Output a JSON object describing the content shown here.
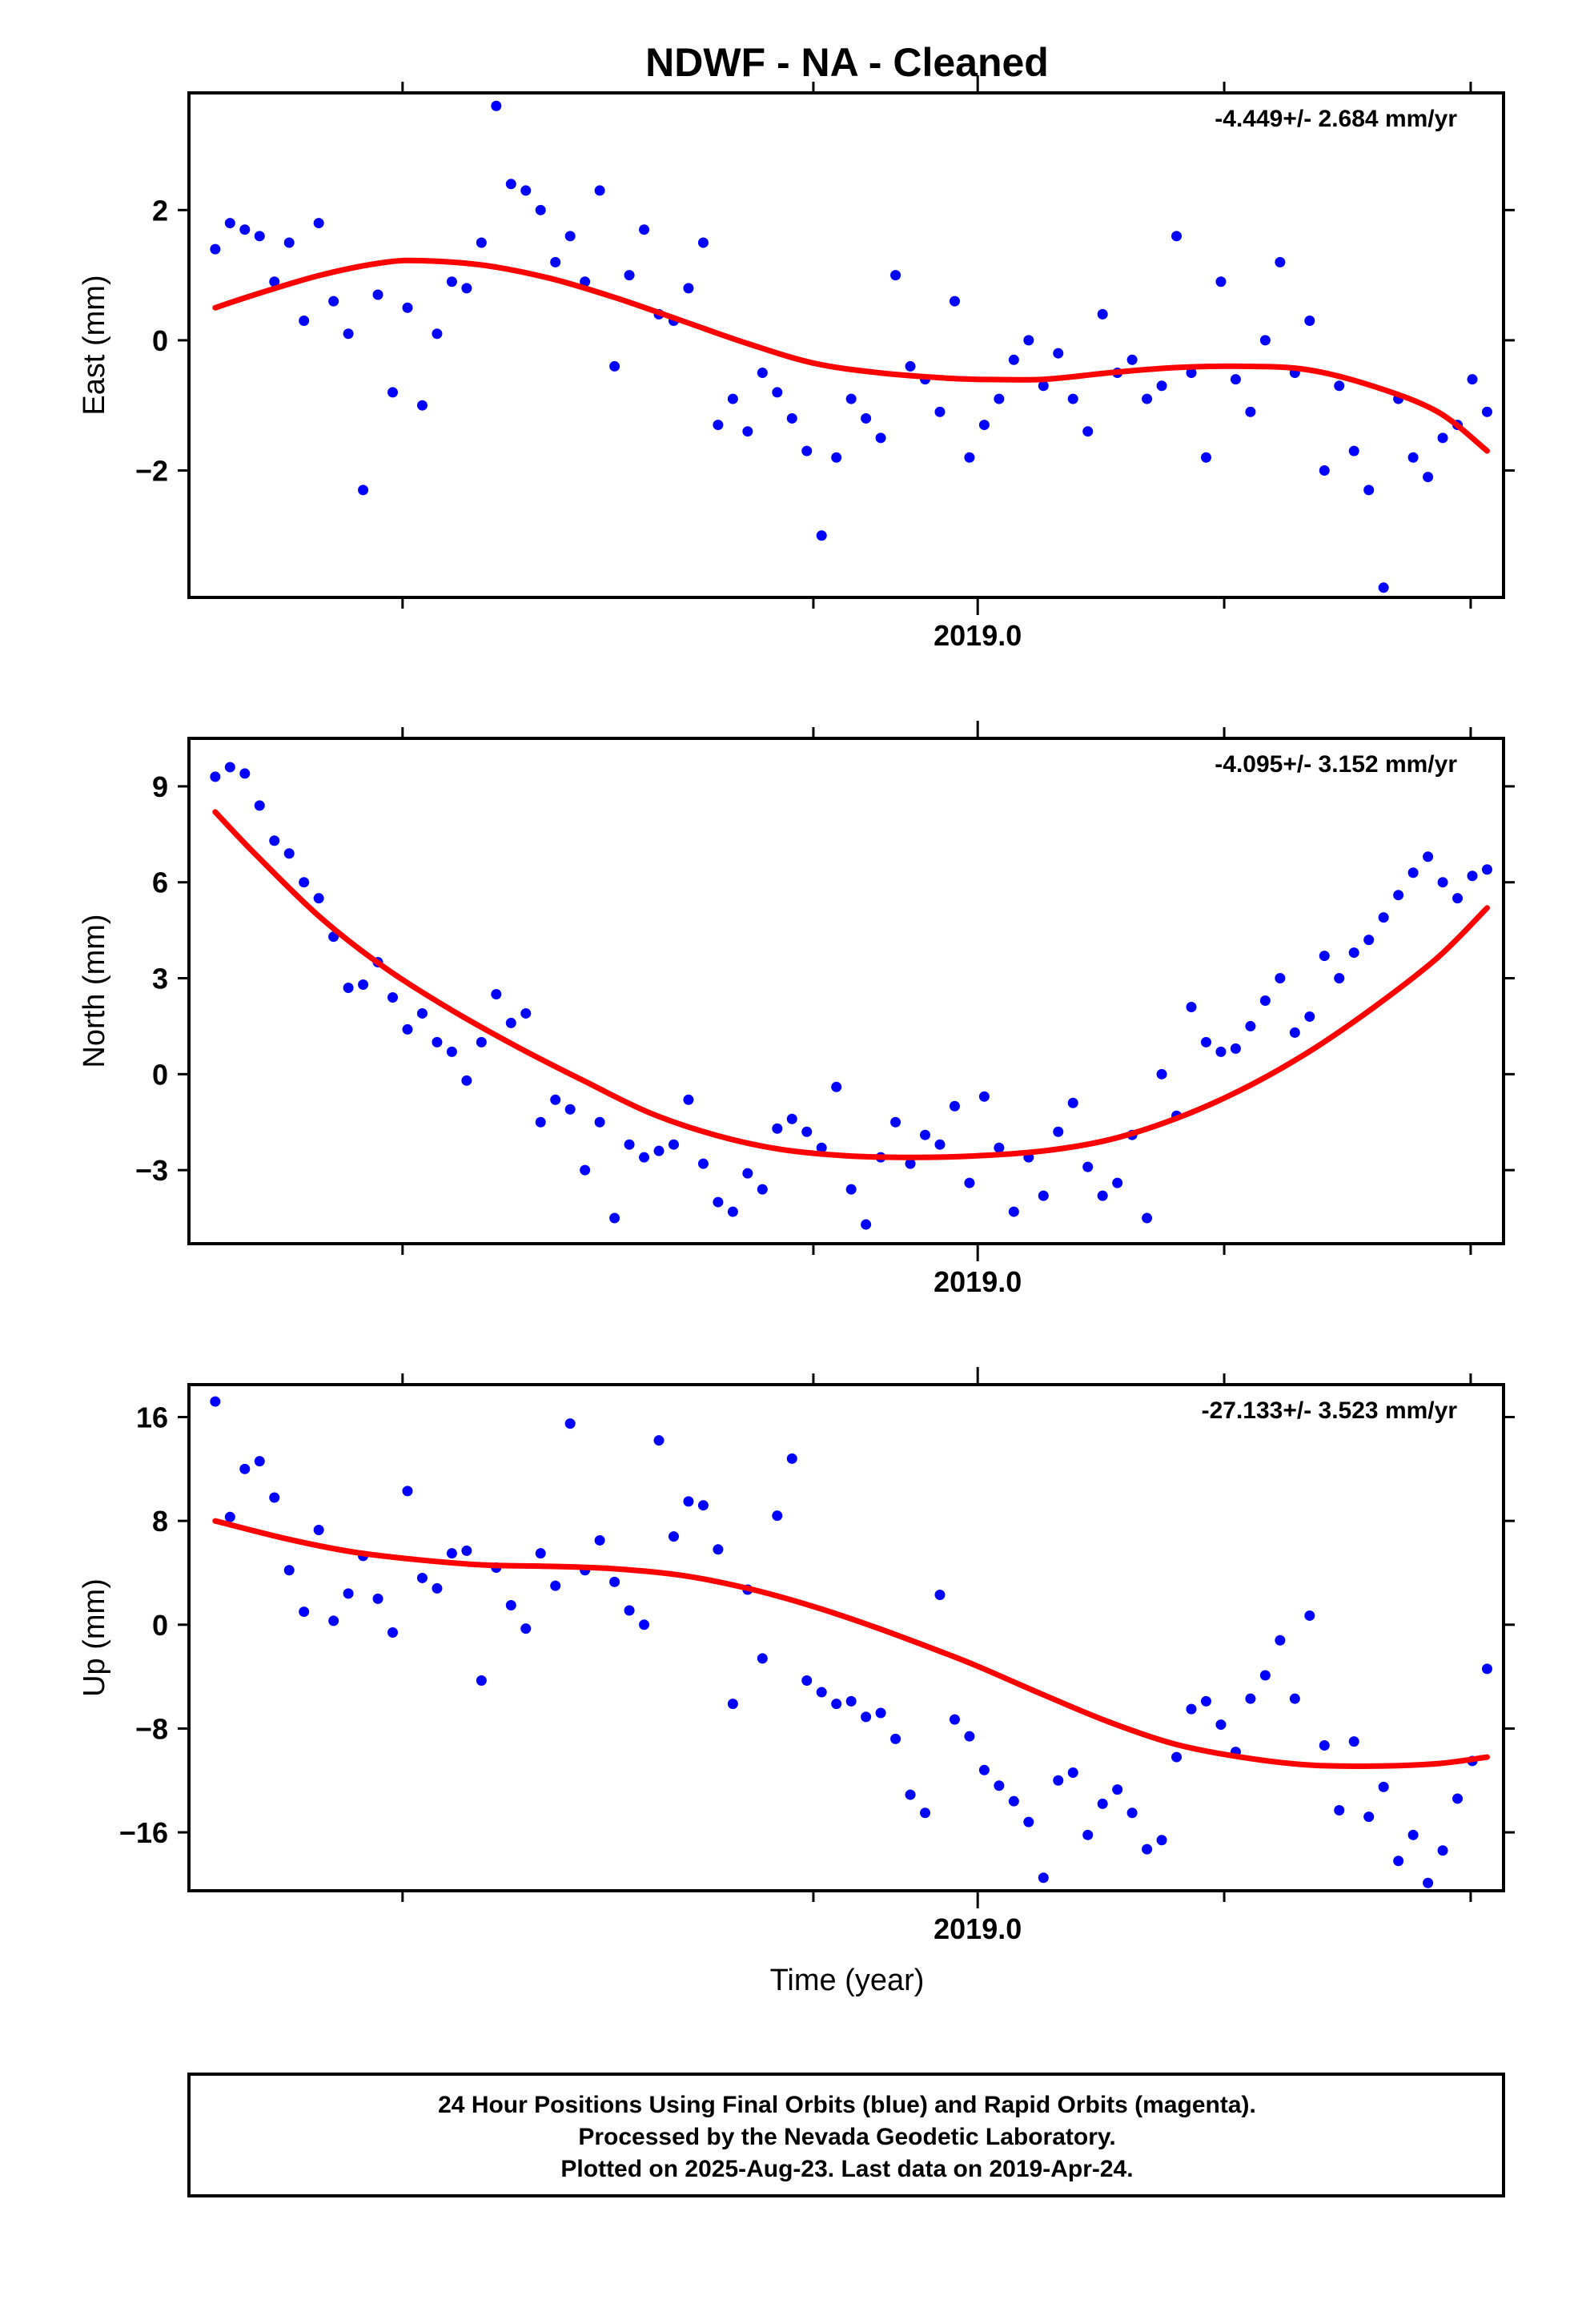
{
  "title": "NDWF  - NA - Cleaned",
  "xlabel": "Time (year)",
  "footer": {
    "line1": "24 Hour Positions Using Final Orbits (blue) and Rapid Orbits (magenta).",
    "line2": "Processed by the Nevada Geodetic Laboratory.",
    "line3": "Plotted on 2025-Aug-23. Last data on 2019-Apr-24."
  },
  "colors": {
    "points": "#0000ff",
    "fit": "#ff0000",
    "axis": "#000000"
  },
  "chart_data": [
    {
      "type": "scatter",
      "ylabel": "East (mm)",
      "rate": "-4.449+/- 2.684 mm/yr",
      "xlim": [
        2018.52,
        2019.32
      ],
      "ylim": [
        -3.95,
        3.8
      ],
      "x_tick_label": {
        "value": 2019.0,
        "label": "2019.0"
      },
      "y_ticks": [
        {
          "value": 2,
          "label": "2"
        },
        {
          "value": 0,
          "label": "0"
        },
        {
          "value": -2,
          "label": "−2"
        }
      ],
      "series": [
        {
          "x": [
            2018.536,
            2018.545,
            2018.554,
            2018.563,
            2018.572,
            2018.581,
            2018.59,
            2018.599,
            2018.608,
            2018.617,
            2018.626,
            2018.635,
            2018.644,
            2018.653,
            2018.662,
            2018.671,
            2018.68,
            2018.689,
            2018.698,
            2018.707,
            2018.716,
            2018.725,
            2018.734,
            2018.743,
            2018.752,
            2018.761,
            2018.77,
            2018.779,
            2018.788,
            2018.797,
            2018.806,
            2018.815,
            2018.824,
            2018.833,
            2018.842,
            2018.851,
            2018.86,
            2018.869,
            2018.878,
            2018.887,
            2018.896,
            2018.905,
            2018.914,
            2018.923,
            2018.932,
            2018.941,
            2018.95,
            2018.959,
            2018.968,
            2018.977,
            2018.986,
            2018.995,
            2019.004,
            2019.013,
            2019.022,
            2019.031,
            2019.04,
            2019.049,
            2019.058,
            2019.067,
            2019.076,
            2019.085,
            2019.094,
            2019.103,
            2019.112,
            2019.121,
            2019.13,
            2019.139,
            2019.148,
            2019.157,
            2019.166,
            2019.175,
            2019.184,
            2019.193,
            2019.202,
            2019.211,
            2019.22,
            2019.229,
            2019.238,
            2019.247,
            2019.256,
            2019.265,
            2019.274,
            2019.283,
            2019.292,
            2019.301,
            2019.31
          ],
          "y": [
            1.4,
            1.8,
            1.7,
            1.6,
            0.9,
            1.5,
            0.3,
            1.8,
            0.6,
            0.1,
            -2.3,
            0.7,
            -0.8,
            0.5,
            -1.0,
            0.1,
            0.9,
            0.8,
            1.5,
            3.6,
            2.4,
            2.3,
            2.0,
            1.2,
            1.6,
            0.9,
            2.3,
            -0.4,
            1.0,
            1.7,
            0.4,
            0.3,
            0.8,
            1.5,
            -1.3,
            -0.9,
            -1.4,
            -0.5,
            -0.8,
            -1.2,
            -1.7,
            -3.0,
            -1.8,
            -0.9,
            -1.2,
            -1.5,
            1.0,
            -0.4,
            -0.6,
            -1.1,
            0.6,
            -1.8,
            -1.3,
            -0.9,
            -0.3,
            0.0,
            -0.7,
            -0.2,
            -0.9,
            -1.4,
            0.4,
            -0.5,
            -0.3,
            -0.9,
            -0.7,
            1.6,
            -0.5,
            -1.8,
            0.9,
            -0.6,
            -1.1,
            0.0,
            1.2,
            -0.5,
            0.3,
            -2.0,
            -0.7,
            -1.7,
            -2.3,
            -3.8,
            -0.9,
            -1.8,
            -2.1,
            -1.5,
            -1.3,
            -0.6,
            -1.1
          ]
        }
      ],
      "fit": {
        "x": [
          2018.536,
          2018.56,
          2018.6,
          2018.64,
          2018.665,
          2018.7,
          2018.74,
          2018.78,
          2018.82,
          2018.86,
          2018.9,
          2018.94,
          2018.98,
          2019.0,
          2019.04,
          2019.08,
          2019.12,
          2019.16,
          2019.2,
          2019.24,
          2019.28,
          2019.31
        ],
        "y": [
          0.5,
          0.7,
          1.0,
          1.2,
          1.22,
          1.15,
          0.95,
          0.65,
          0.3,
          -0.05,
          -0.35,
          -0.5,
          -0.58,
          -0.6,
          -0.6,
          -0.5,
          -0.42,
          -0.4,
          -0.45,
          -0.7,
          -1.1,
          -1.7
        ]
      }
    },
    {
      "type": "scatter",
      "ylabel": "North (mm)",
      "rate": "-4.095+/- 3.152 mm/yr",
      "xlim": [
        2018.52,
        2019.32
      ],
      "ylim": [
        -5.3,
        10.5
      ],
      "x_tick_label": {
        "value": 2019.0,
        "label": "2019.0"
      },
      "y_ticks": [
        {
          "value": 9,
          "label": "9"
        },
        {
          "value": 6,
          "label": "6"
        },
        {
          "value": 3,
          "label": "3"
        },
        {
          "value": 0,
          "label": "0"
        },
        {
          "value": -3,
          "label": "−3"
        }
      ],
      "series": [
        {
          "x": [
            2018.536,
            2018.545,
            2018.554,
            2018.563,
            2018.572,
            2018.581,
            2018.59,
            2018.599,
            2018.608,
            2018.617,
            2018.626,
            2018.635,
            2018.644,
            2018.653,
            2018.662,
            2018.671,
            2018.68,
            2018.689,
            2018.698,
            2018.707,
            2018.716,
            2018.725,
            2018.734,
            2018.743,
            2018.752,
            2018.761,
            2018.77,
            2018.779,
            2018.788,
            2018.797,
            2018.806,
            2018.815,
            2018.824,
            2018.833,
            2018.842,
            2018.851,
            2018.86,
            2018.869,
            2018.878,
            2018.887,
            2018.896,
            2018.905,
            2018.914,
            2018.923,
            2018.932,
            2018.941,
            2018.95,
            2018.959,
            2018.968,
            2018.977,
            2018.986,
            2018.995,
            2019.004,
            2019.013,
            2019.022,
            2019.031,
            2019.04,
            2019.049,
            2019.058,
            2019.067,
            2019.076,
            2019.085,
            2019.094,
            2019.103,
            2019.112,
            2019.121,
            2019.13,
            2019.139,
            2019.148,
            2019.157,
            2019.166,
            2019.175,
            2019.184,
            2019.193,
            2019.202,
            2019.211,
            2019.22,
            2019.229,
            2019.238,
            2019.247,
            2019.256,
            2019.265,
            2019.274,
            2019.283,
            2019.292,
            2019.301,
            2019.31
          ],
          "y": [
            9.3,
            9.6,
            9.4,
            8.4,
            7.3,
            6.9,
            6.0,
            5.5,
            4.3,
            2.7,
            2.8,
            3.5,
            2.4,
            1.4,
            1.9,
            1.0,
            0.7,
            -0.2,
            1.0,
            2.5,
            1.6,
            1.9,
            -1.5,
            -0.8,
            -1.1,
            -3.0,
            -1.5,
            -4.5,
            -2.2,
            -2.6,
            -2.4,
            -2.2,
            -0.8,
            -2.8,
            -4.0,
            -4.3,
            -3.1,
            -3.6,
            -1.7,
            -1.4,
            -1.8,
            -2.3,
            -0.4,
            -3.6,
            -4.7,
            -2.6,
            -1.5,
            -2.8,
            -1.9,
            -2.2,
            -1.0,
            -3.4,
            -0.7,
            -2.3,
            -4.3,
            -2.6,
            -3.8,
            -1.8,
            -0.9,
            -2.9,
            -3.8,
            -3.4,
            -1.9,
            -4.5,
            0.0,
            -1.3,
            2.1,
            1.0,
            0.7,
            0.8,
            1.5,
            2.3,
            3.0,
            1.3,
            1.8,
            3.7,
            3.0,
            3.8,
            4.2,
            4.9,
            5.6,
            6.3,
            6.8,
            6.0,
            5.5,
            6.2,
            6.4
          ]
        }
      ],
      "fit": {
        "x": [
          2018.536,
          2018.56,
          2018.6,
          2018.64,
          2018.68,
          2018.72,
          2018.76,
          2018.8,
          2018.84,
          2018.88,
          2018.92,
          2018.96,
          2019.0,
          2019.04,
          2019.08,
          2019.12,
          2019.16,
          2019.2,
          2019.24,
          2019.28,
          2019.31
        ],
        "y": [
          8.2,
          6.9,
          4.9,
          3.3,
          2.0,
          0.85,
          -0.2,
          -1.2,
          -1.9,
          -2.35,
          -2.55,
          -2.6,
          -2.55,
          -2.4,
          -2.05,
          -1.4,
          -0.5,
          0.65,
          2.05,
          3.65,
          5.2
        ]
      }
    },
    {
      "type": "scatter",
      "ylabel": "Up (mm)",
      "rate": "-27.133+/- 3.523 mm/yr",
      "xlim": [
        2018.52,
        2019.32
      ],
      "ylim": [
        -20.5,
        18.5
      ],
      "x_tick_label": {
        "value": 2019.0,
        "label": "2019.0"
      },
      "y_ticks": [
        {
          "value": 16,
          "label": "16"
        },
        {
          "value": 8,
          "label": "8"
        },
        {
          "value": 0,
          "label": "0"
        },
        {
          "value": -8,
          "label": "−8"
        },
        {
          "value": -16,
          "label": "−16"
        }
      ],
      "series": [
        {
          "x": [
            2018.536,
            2018.545,
            2018.554,
            2018.563,
            2018.572,
            2018.581,
            2018.59,
            2018.599,
            2018.608,
            2018.617,
            2018.626,
            2018.635,
            2018.644,
            2018.653,
            2018.662,
            2018.671,
            2018.68,
            2018.689,
            2018.698,
            2018.707,
            2018.716,
            2018.725,
            2018.734,
            2018.743,
            2018.752,
            2018.761,
            2018.77,
            2018.779,
            2018.788,
            2018.797,
            2018.806,
            2018.815,
            2018.824,
            2018.833,
            2018.842,
            2018.851,
            2018.86,
            2018.869,
            2018.878,
            2018.887,
            2018.896,
            2018.905,
            2018.914,
            2018.923,
            2018.932,
            2018.941,
            2018.95,
            2018.959,
            2018.968,
            2018.977,
            2018.986,
            2018.995,
            2019.004,
            2019.013,
            2019.022,
            2019.031,
            2019.04,
            2019.049,
            2019.058,
            2019.067,
            2019.076,
            2019.085,
            2019.094,
            2019.103,
            2019.112,
            2019.121,
            2019.13,
            2019.139,
            2019.148,
            2019.157,
            2019.166,
            2019.175,
            2019.184,
            2019.193,
            2019.202,
            2019.211,
            2019.22,
            2019.229,
            2019.238,
            2019.247,
            2019.256,
            2019.265,
            2019.274,
            2019.283,
            2019.292,
            2019.301,
            2019.31
          ],
          "y": [
            17.2,
            8.3,
            12.0,
            12.6,
            9.8,
            4.2,
            1.0,
            7.3,
            0.3,
            2.4,
            5.3,
            2.0,
            -0.6,
            10.3,
            3.6,
            2.8,
            5.5,
            5.7,
            -4.3,
            4.4,
            1.5,
            -0.3,
            5.5,
            3.0,
            15.5,
            4.2,
            6.5,
            3.3,
            1.1,
            0.0,
            14.2,
            6.8,
            9.5,
            9.2,
            5.8,
            -6.1,
            2.7,
            -2.6,
            8.4,
            12.8,
            -4.3,
            -5.2,
            -6.1,
            -5.9,
            -7.1,
            -6.8,
            -8.8,
            -13.1,
            -14.5,
            2.3,
            -7.3,
            -8.6,
            -11.2,
            -12.4,
            -13.6,
            -15.2,
            -19.5,
            -12.0,
            -11.4,
            -16.2,
            -13.8,
            -12.7,
            -14.5,
            -17.3,
            -16.6,
            -10.2,
            -6.5,
            -5.9,
            -7.7,
            -9.8,
            -5.7,
            -3.9,
            -1.2,
            -5.7,
            0.7,
            -9.3,
            -14.3,
            -9.0,
            -14.8,
            -12.5,
            -18.2,
            -16.2,
            -19.9,
            -17.4,
            -13.4,
            -10.5,
            -3.4
          ]
        }
      ],
      "fit": {
        "x": [
          2018.536,
          2018.58,
          2018.62,
          2018.66,
          2018.7,
          2018.74,
          2018.78,
          2018.82,
          2018.86,
          2018.9,
          2018.94,
          2018.98,
          2019.0,
          2019.04,
          2019.08,
          2019.12,
          2019.16,
          2019.2,
          2019.24,
          2019.28,
          2019.31
        ],
        "y": [
          8.0,
          6.6,
          5.6,
          5.0,
          4.6,
          4.5,
          4.3,
          3.8,
          2.8,
          1.4,
          -0.3,
          -2.2,
          -3.2,
          -5.4,
          -7.5,
          -9.2,
          -10.2,
          -10.8,
          -10.9,
          -10.7,
          -10.2
        ]
      }
    }
  ]
}
